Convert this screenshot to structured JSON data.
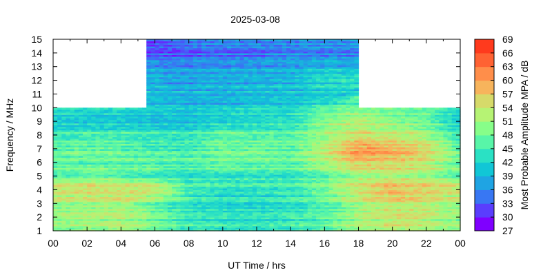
{
  "chart_data": {
    "type": "heatmap",
    "title": "2025-03-08",
    "xlabel": "UT Time / hrs",
    "ylabel": "Frequency / MHz",
    "xlim": [
      0,
      24
    ],
    "ylim": [
      1,
      15
    ],
    "x_ticks": [
      "00",
      "02",
      "04",
      "06",
      "08",
      "10",
      "12",
      "14",
      "16",
      "18",
      "20",
      "22",
      "00"
    ],
    "y_ticks": [
      "1",
      "2",
      "3",
      "4",
      "5",
      "6",
      "7",
      "8",
      "9",
      "10",
      "11",
      "12",
      "13",
      "14",
      "15"
    ],
    "colorbar": {
      "label": "Most Probable Amplitude MPA / dB",
      "min": 27,
      "max": 69,
      "ticks": [
        "27",
        "30",
        "33",
        "36",
        "39",
        "42",
        "45",
        "48",
        "51",
        "54",
        "57",
        "60",
        "63",
        "66",
        "69"
      ],
      "colors": [
        "#7f00ff",
        "#5a3dfd",
        "#3877f3",
        "#1fa4e3",
        "#11c6d6",
        "#2ae1c4",
        "#58f5a8",
        "#87fe89",
        "#b6f374",
        "#d6da6a",
        "#f7b45c",
        "#ff8e4a",
        "#ff6233",
        "#ff3a1d",
        "#ff0000"
      ]
    },
    "coverage": [
      {
        "hours": [
          0,
          5.5
        ],
        "max_mhz": 10
      },
      {
        "hours": [
          5.5,
          18
        ],
        "max_mhz": 15
      },
      {
        "hours": [
          18,
          24
        ],
        "max_mhz": 10
      }
    ],
    "typical_mpa_db": {
      "freqs_mhz": [
        1,
        2,
        3,
        4,
        5,
        6,
        7,
        8,
        9,
        10,
        11,
        12,
        13,
        14,
        15
      ],
      "hours": [
        0,
        2,
        4,
        6,
        8,
        10,
        12,
        14,
        16,
        18,
        20,
        22,
        24
      ],
      "values": [
        [
          47,
          48,
          49,
          46,
          43,
          42,
          42,
          43,
          45,
          49,
          51,
          50,
          47
        ],
        [
          48,
          49,
          50,
          46,
          42,
          41,
          41,
          42,
          44,
          49,
          52,
          51,
          48
        ],
        [
          49,
          50,
          51,
          46,
          42,
          41,
          41,
          42,
          45,
          50,
          53,
          52,
          49
        ],
        [
          53,
          54,
          54,
          53,
          44,
          42,
          42,
          43,
          47,
          53,
          57,
          55,
          53
        ],
        [
          46,
          47,
          46,
          44,
          42,
          43,
          43,
          43,
          46,
          50,
          51,
          50,
          46
        ],
        [
          44,
          45,
          45,
          45,
          44,
          46,
          45,
          45,
          50,
          55,
          54,
          52,
          45
        ],
        [
          46,
          47,
          46,
          44,
          44,
          47,
          47,
          46,
          52,
          60,
          58,
          55,
          46
        ],
        [
          43,
          44,
          44,
          43,
          43,
          46,
          45,
          45,
          49,
          53,
          52,
          50,
          43
        ],
        [
          41,
          41,
          41,
          40,
          40,
          42,
          43,
          43,
          50,
          53,
          50,
          48,
          41
        ],
        [
          40,
          40,
          40,
          39,
          38,
          39,
          40,
          40,
          44,
          46,
          45,
          44,
          40
        ],
        [
          null,
          null,
          null,
          38,
          37,
          37,
          38,
          38,
          39,
          null,
          null,
          null,
          null
        ],
        [
          null,
          null,
          null,
          37,
          36,
          37,
          37,
          38,
          42,
          null,
          null,
          null,
          null
        ],
        [
          null,
          null,
          null,
          35,
          34,
          35,
          35,
          36,
          37,
          null,
          null,
          null,
          null
        ],
        [
          null,
          null,
          null,
          31,
          32,
          33,
          33,
          34,
          34,
          null,
          null,
          null,
          null
        ],
        [
          null,
          null,
          null,
          30,
          33,
          34,
          34,
          34,
          35,
          null,
          null,
          null,
          null
        ]
      ]
    }
  }
}
